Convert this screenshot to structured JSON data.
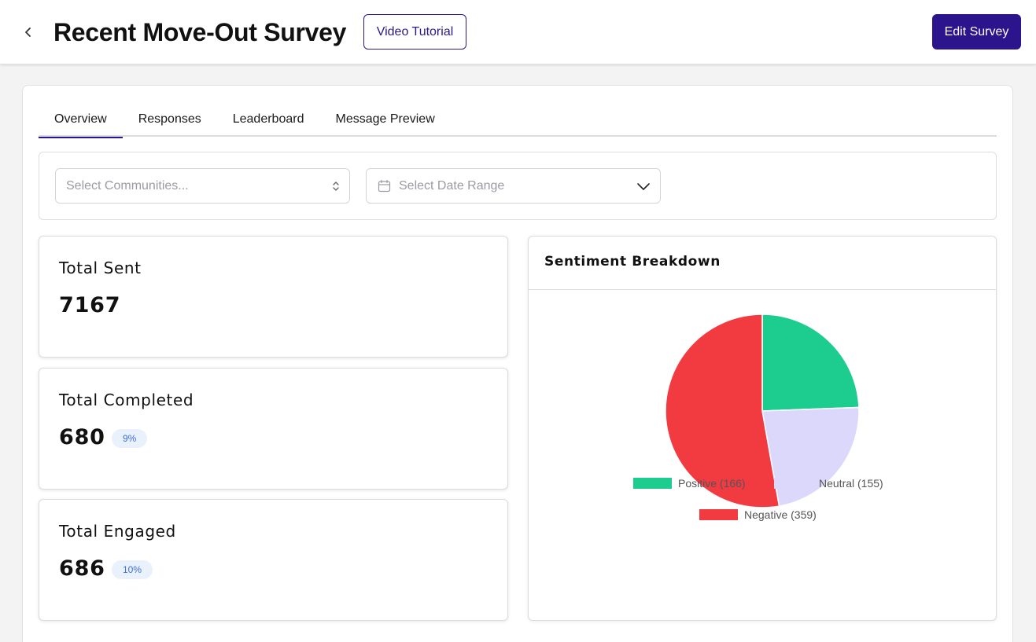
{
  "header": {
    "title": "Recent Move-Out Survey",
    "video_tutorial_label": "Video Tutorial",
    "edit_survey_label": "Edit Survey"
  },
  "tabs": [
    {
      "label": "Overview",
      "active": true
    },
    {
      "label": "Responses",
      "active": false
    },
    {
      "label": "Leaderboard",
      "active": false
    },
    {
      "label": "Message Preview",
      "active": false
    }
  ],
  "filters": {
    "communities_placeholder": "Select Communities...",
    "date_range_placeholder": "Select Date Range"
  },
  "stats": {
    "total_sent": {
      "label": "Total Sent",
      "value": "7167"
    },
    "total_completed": {
      "label": "Total Completed",
      "value": "680",
      "badge": "9%"
    },
    "total_engaged": {
      "label": "Total Engaged",
      "value": "686",
      "badge": "10%"
    }
  },
  "sentiment": {
    "title": "Sentiment Breakdown",
    "legend": {
      "positive": "Positive (166)",
      "neutral": "Neutral (155)",
      "negative": "Negative (359)"
    }
  },
  "chart_data": {
    "type": "pie",
    "title": "Sentiment Breakdown",
    "categories": [
      "Positive",
      "Neutral",
      "Negative"
    ],
    "values": [
      166,
      155,
      359
    ],
    "colors": [
      "#1dcd8f",
      "#dcd8fb",
      "#f23a41"
    ],
    "legend_position": "bottom"
  },
  "colors": {
    "brand": "#2c158c",
    "badge_bg": "#e9f1fd",
    "badge_text": "#3b6fd8"
  }
}
